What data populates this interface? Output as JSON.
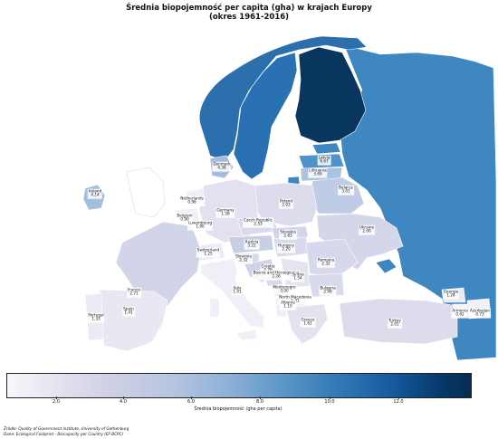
{
  "title_line1": "Średnia biopojemność per capita (gha) w krajach Europy",
  "title_line2": "(okres 1961-2016)",
  "colorbar": {
    "label": "Średnia biopojemność (gha per capita)",
    "ticks": [
      "2.0",
      "4.0",
      "6.0",
      "8.0",
      "10.0",
      "12.0"
    ]
  },
  "source_line1": "Źródło: Quality of Government Institute, University of Gothenburg",
  "source_line2": "Dane: Ecological Footprint - Biocapacity per Country (EF-BCPC)",
  "countries": [
    {
      "name": "Denmark",
      "value": "4.38"
    },
    {
      "name": "Latvia",
      "value": "6.67"
    },
    {
      "name": "Lithuania",
      "value": "3.69"
    },
    {
      "name": "Ireland",
      "value": "4.14"
    },
    {
      "name": "Netherlands",
      "value": "0.98"
    },
    {
      "name": "Poland",
      "value": "2.03"
    },
    {
      "name": "Belarus",
      "value": "3.01"
    },
    {
      "name": "Germany",
      "value": "1.58"
    },
    {
      "name": "Belgium",
      "value": "0.90"
    },
    {
      "name": "Luxembourg",
      "value": "1.90"
    },
    {
      "name": "Czech Republic",
      "value": "2.53"
    },
    {
      "name": "Slovakia",
      "value": "2.83"
    },
    {
      "name": "Ukraine",
      "value": "2.00"
    },
    {
      "name": "Switzerland",
      "value": "1.25"
    },
    {
      "name": "Austria",
      "value": "3.22"
    },
    {
      "name": "Hungary",
      "value": "2.20"
    },
    {
      "name": "Slovenia",
      "value": "2.32"
    },
    {
      "name": "Romania",
      "value": "2.32"
    },
    {
      "name": "Croatia",
      "value": "2.76"
    },
    {
      "name": "Bosnia and Herzegovina",
      "value": "2.26"
    },
    {
      "name": "Serbia",
      "value": "1.54"
    },
    {
      "name": "France",
      "value": "2.71"
    },
    {
      "name": "Italy",
      "value": "1.01"
    },
    {
      "name": "Montenegro",
      "value": "3.00"
    },
    {
      "name": "Bulgaria",
      "value": "2.49"
    },
    {
      "name": "North Macedonia",
      "value": "1.41"
    },
    {
      "name": "Albania",
      "value": "1.10"
    },
    {
      "name": "Portugal",
      "value": "1.33"
    },
    {
      "name": "Spain",
      "value": "1.41"
    },
    {
      "name": "Greece",
      "value": "1.61"
    },
    {
      "name": "Turkey",
      "value": "2.01"
    },
    {
      "name": "Georgia",
      "value": "1.24"
    },
    {
      "name": "Armenia",
      "value": "0.62"
    },
    {
      "name": "Azerbaijan",
      "value": "0.73"
    }
  ]
}
